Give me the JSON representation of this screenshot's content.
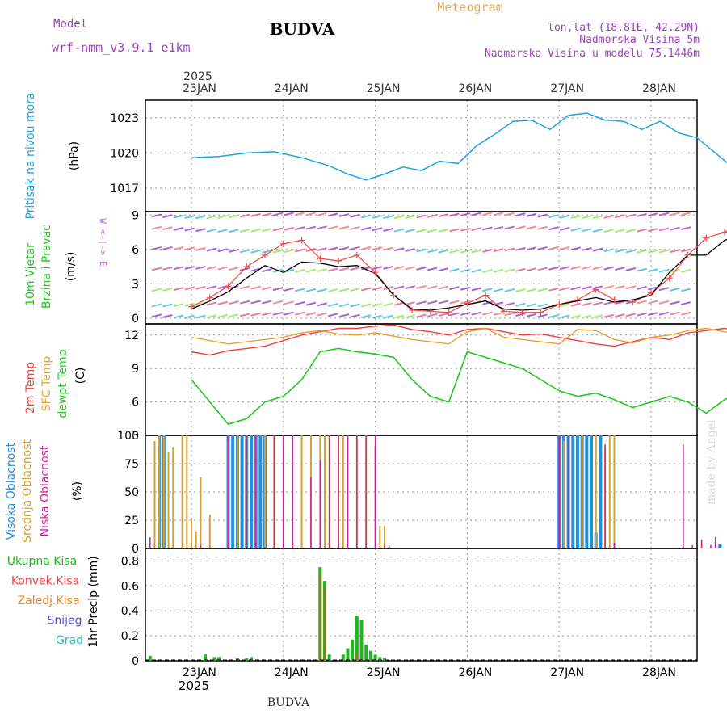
{
  "header": {
    "model_label": "Model",
    "model_name": "wrf-nmm_v3.9.1 e1km",
    "title": "BUDVA",
    "subtitle": "Meteogram",
    "location": "lon,lat (18.81E, 42.29N)",
    "elevation": "Nadmorska Visina 5m",
    "model_elevation": "Nadmorska Visina u modelu 75.1446m",
    "watermark": "made by Angel",
    "footer": "BUDVA"
  },
  "time_axis": {
    "year": "2025",
    "ticks": [
      "23JAN",
      "24JAN",
      "25JAN",
      "26JAN",
      "27JAN",
      "28JAN"
    ]
  },
  "colors": {
    "pressure": "#1ba5e0",
    "wind_speed": "#000000",
    "wind_gust": "#f05050",
    "temp_2m": "#f04040",
    "temp_sfc": "#e8a030",
    "dewpoint": "#20c820",
    "cloud_high": "#1e90e0",
    "cloud_mid": "#d8a030",
    "cloud_low": "#d020a0",
    "precip_total": "#20b820",
    "precip_conv": "#f04040",
    "precip_frozen": "#f08020",
    "precip_snow": "#5050e0",
    "precip_hail": "#20c0c0"
  },
  "chart_data": [
    {
      "type": "line",
      "ylabel_lines": [
        "Pritisak na nivou mora",
        "(hPa)"
      ],
      "ylim": [
        1015,
        1024.5
      ],
      "yticks": [
        "1017",
        "1020",
        "1023"
      ],
      "x": [
        0,
        0.3,
        0.6,
        0.9,
        1.2,
        1.5,
        1.7,
        1.9,
        2.1,
        2.3,
        2.5,
        2.7,
        2.9,
        3.1,
        3.3,
        3.5,
        3.7,
        3.9,
        4.1,
        4.3,
        4.5,
        4.7,
        4.9,
        5.1,
        5.3,
        5.5,
        5.7,
        5.9,
        6.1,
        6.3
      ],
      "series": [
        {
          "values": [
            1019.6,
            1019.7,
            1020.0,
            1020.1,
            1019.6,
            1018.9,
            1018.2,
            1017.7,
            1018.2,
            1018.8,
            1018.5,
            1019.3,
            1019.1,
            1020.6,
            1021.6,
            1022.7,
            1022.8,
            1022.0,
            1023.2,
            1023.4,
            1022.8,
            1022.7,
            1022.0,
            1022.7,
            1021.7,
            1021.3,
            1020.0,
            1018.7,
            1016.8,
            1015.4
          ]
        }
      ]
    },
    {
      "type": "line",
      "ylabel_lines": [
        "10m Vjetar",
        "Brzina i Pravac",
        "(m/s)"
      ],
      "compass": "W <-|-> E",
      "ylim": [
        -0.5,
        9.3
      ],
      "yticks": [
        "0",
        "3",
        "6",
        "9"
      ],
      "x": [
        0,
        0.2,
        0.4,
        0.6,
        0.8,
        1.0,
        1.2,
        1.4,
        1.6,
        1.8,
        2.0,
        2.2,
        2.4,
        2.6,
        2.8,
        3.0,
        3.2,
        3.4,
        3.6,
        3.8,
        4.0,
        4.2,
        4.4,
        4.6,
        4.8,
        5.0,
        5.2,
        5.4,
        5.6,
        5.8,
        6.0,
        6.3
      ],
      "series": [
        {
          "name": "speed",
          "values": [
            0.8,
            1.5,
            2.3,
            3.5,
            4.6,
            4.0,
            4.9,
            4.8,
            4.5,
            4.6,
            3.9,
            2.0,
            0.8,
            0.7,
            0.9,
            1.2,
            1.5,
            0.8,
            0.7,
            0.8,
            1.2,
            1.5,
            1.8,
            1.4,
            1.6,
            2.0,
            4.0,
            5.5,
            5.5,
            6.8,
            7.3,
            7.3
          ]
        },
        {
          "name": "gust",
          "values": [
            1.0,
            1.8,
            2.8,
            4.5,
            5.5,
            6.5,
            6.8,
            5.2,
            5.0,
            5.5,
            4.0,
            2.0,
            0.7,
            0.6,
            0.5,
            1.3,
            2.0,
            0.6,
            0.5,
            0.5,
            1.2,
            1.6,
            2.5,
            1.6,
            1.4,
            2.2,
            3.5,
            5.5,
            7.0,
            7.5,
            8.5,
            8.9
          ]
        }
      ]
    },
    {
      "type": "line",
      "ylabel_lines": [
        "2m Temp",
        "SFC Temp",
        "dewpt Temp",
        "(C)"
      ],
      "ylim": [
        3,
        13
      ],
      "yticks": [
        "3",
        "6",
        "9",
        "12"
      ],
      "x": [
        0,
        0.2,
        0.4,
        0.6,
        0.8,
        1.0,
        1.2,
        1.4,
        1.6,
        1.8,
        2.0,
        2.2,
        2.4,
        2.6,
        2.8,
        3.0,
        3.2,
        3.4,
        3.6,
        3.8,
        4.0,
        4.2,
        4.4,
        4.6,
        4.8,
        5.0,
        5.2,
        5.4,
        5.6,
        5.8,
        6.0,
        6.3
      ],
      "series": [
        {
          "name": "2m",
          "values": [
            10.5,
            10.2,
            10.6,
            10.8,
            11.0,
            11.5,
            12.0,
            12.3,
            12.6,
            12.6,
            12.8,
            12.9,
            12.5,
            12.3,
            12.0,
            12.5,
            12.6,
            12.3,
            12.0,
            12.1,
            11.8,
            11.5,
            11.2,
            11.0,
            11.4,
            11.8,
            11.6,
            12.2,
            12.4,
            12.6,
            12.2,
            12.8
          ]
        },
        {
          "name": "sfc",
          "values": [
            11.8,
            11.5,
            11.2,
            11.4,
            11.6,
            11.8,
            12.2,
            12.4,
            12.1,
            12.0,
            12.2,
            11.9,
            11.6,
            11.4,
            11.2,
            12.3,
            12.6,
            11.8,
            11.6,
            11.4,
            11.2,
            12.5,
            12.4,
            11.6,
            11.3,
            11.8,
            12.0,
            12.4,
            12.6,
            12.3,
            11.9,
            12.7
          ]
        },
        {
          "name": "dewpoint",
          "values": [
            8.0,
            6.0,
            4.0,
            4.5,
            6.0,
            6.5,
            8.0,
            10.5,
            10.8,
            10.5,
            10.3,
            10.0,
            8.0,
            6.5,
            6.0,
            10.5,
            10.0,
            9.5,
            9.0,
            8.0,
            7.0,
            6.5,
            6.8,
            6.2,
            5.5,
            6.0,
            6.5,
            6.0,
            5.0,
            6.2,
            7.0,
            7.0
          ]
        }
      ]
    },
    {
      "type": "bar",
      "ylabel_lines": [
        "Visoka Oblacnost",
        "Srednja Oblacnost",
        "Niska Oblacnost",
        "(%)"
      ],
      "ylim": [
        0,
        100
      ],
      "yticks": [
        "0",
        "25",
        "50",
        "75",
        "100"
      ],
      "series": [
        {
          "name": "high",
          "x": [
            0.15,
            0.2,
            0.9,
            0.95,
            1.0,
            1.05,
            1.1,
            1.15,
            1.2,
            1.25,
            1.3,
            4.5,
            4.55,
            4.6,
            4.65,
            4.7,
            4.75,
            4.8,
            4.85,
            4.9,
            4.95,
            6.25
          ],
          "values": [
            100,
            100,
            100,
            100,
            100,
            100,
            100,
            100,
            100,
            100,
            100,
            100,
            100,
            100,
            100,
            100,
            100,
            100,
            100,
            14,
            100,
            4
          ]
        },
        {
          "name": "mid",
          "x": [
            0.1,
            0.15,
            0.2,
            0.25,
            0.3,
            0.4,
            0.45,
            0.5,
            0.55,
            0.6,
            0.7,
            0.9,
            1.0,
            1.1,
            1.2,
            1.3,
            1.4,
            1.5,
            1.6,
            1.7,
            1.8,
            1.9,
            1.95,
            2.0,
            2.1,
            2.15,
            2.2,
            2.3,
            2.4,
            2.5,
            2.55,
            2.6,
            4.55,
            4.75,
            4.9,
            5.0,
            5.05,
            5.1
          ],
          "values": [
            95,
            100,
            100,
            85,
            90,
            100,
            100,
            27,
            15,
            63,
            30,
            95,
            100,
            100,
            100,
            100,
            100,
            100,
            100,
            100,
            100,
            100,
            100,
            100,
            100,
            100,
            100,
            100,
            100,
            90,
            20,
            20,
            95,
            100,
            100,
            90,
            100,
            100
          ]
        },
        {
          "name": "low",
          "x": [
            0.05,
            0.6,
            0.9,
            1.1,
            1.2,
            1.4,
            1.5,
            1.6,
            1.8,
            1.9,
            2.0,
            2.1,
            2.2,
            2.3,
            2.4,
            2.5,
            2.6,
            2.65,
            4.5,
            4.6,
            5.0,
            5.1,
            5.85,
            5.95,
            6.05,
            6.15,
            6.2,
            6.25
          ],
          "values": [
            10,
            3,
            100,
            100,
            100,
            100,
            100,
            100,
            63,
            78,
            100,
            100,
            100,
            100,
            100,
            100,
            3,
            3,
            100,
            100,
            92,
            5,
            92,
            3,
            8,
            3,
            10,
            3
          ]
        }
      ]
    },
    {
      "type": "bar",
      "legend": [
        "Ukupna Kisa",
        "Konvek.Kisa",
        "Zaledj.Kisa",
        "Snijeg",
        "Grad"
      ],
      "ylabel": "1hr Precip (mm)",
      "ylim": [
        0,
        0.9
      ],
      "yticks": [
        "0",
        "0.2",
        "0.4",
        "0.6",
        "0.8"
      ],
      "series": [
        {
          "name": "total",
          "x": [
            0.05,
            0.65,
            0.75,
            0.8,
            1.0,
            1.1,
            1.15,
            1.9,
            1.95,
            2.0,
            2.15,
            2.2,
            2.25,
            2.3,
            2.35,
            2.4,
            2.45,
            2.5,
            2.55,
            2.6
          ],
          "values": [
            0.04,
            0.05,
            0.03,
            0.03,
            0.02,
            0.02,
            0.03,
            0.75,
            0.64,
            0.05,
            0.05,
            0.1,
            0.17,
            0.36,
            0.33,
            0.13,
            0.08,
            0.05,
            0.03,
            0.02
          ]
        },
        {
          "name": "convective",
          "x": [
            1.9,
            1.95,
            2.3
          ],
          "values": [
            0.7,
            0.6,
            0.06
          ]
        }
      ]
    }
  ]
}
